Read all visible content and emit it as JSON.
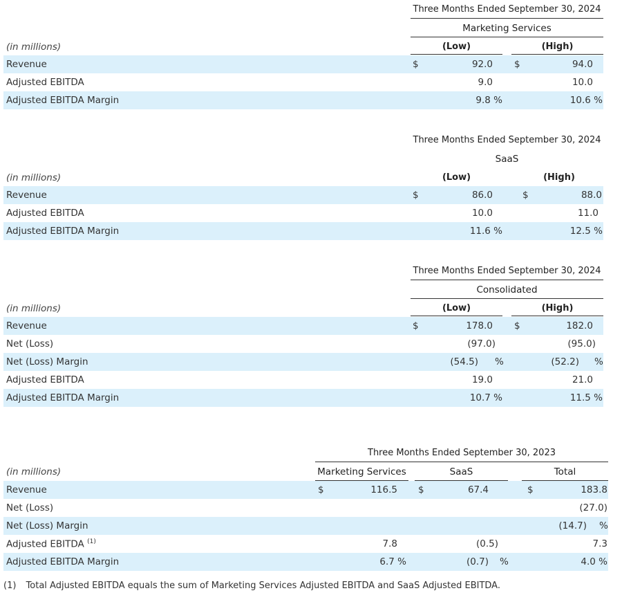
{
  "common": {
    "units_label": "(in millions)",
    "period_2024": "Three Months Ended September 30, 2024",
    "period_2023": "Three Months Ended September 30, 2023",
    "low": "(Low)",
    "high": "(High)",
    "dollar": "$",
    "pct": "%"
  },
  "table1": {
    "segment": "Marketing Services",
    "rows": [
      {
        "label": "Revenue",
        "low": "92.0",
        "high": "94.0"
      },
      {
        "label": "Adjusted EBITDA",
        "low": "9.0",
        "high": "10.0"
      },
      {
        "label": "Adjusted EBITDA Margin",
        "low": "9.8 %",
        "high": "10.6 %"
      }
    ]
  },
  "table2": {
    "segment": "SaaS",
    "rows": [
      {
        "label": "Revenue",
        "low": "86.0",
        "high": "88.0"
      },
      {
        "label": "Adjusted EBITDA",
        "low": "10.0",
        "high": "11.0"
      },
      {
        "label": "Adjusted EBITDA Margin",
        "low": "11.6 %",
        "high": "12.5 %"
      }
    ]
  },
  "table3": {
    "segment": "Consolidated",
    "rows": [
      {
        "label": "Revenue",
        "low": "178.0",
        "high": "182.0"
      },
      {
        "label": "Net (Loss)",
        "low": "(97.0)",
        "high": "(95.0)"
      },
      {
        "label": "Net (Loss) Margin",
        "low": "(54.5)",
        "high": "(52.2)"
      },
      {
        "label": "Adjusted EBITDA",
        "low": "19.0",
        "high": "21.0"
      },
      {
        "label": "Adjusted EBITDA Margin",
        "low": "10.7 %",
        "high": "11.5 %"
      }
    ]
  },
  "table4": {
    "columns": [
      "Marketing Services",
      "SaaS",
      "Total"
    ],
    "rows": [
      {
        "label": "Revenue",
        "ms": "116.5",
        "saas": "67.4",
        "total": "183.8"
      },
      {
        "label": "Net (Loss)",
        "ms": "",
        "saas": "",
        "total": "(27.0)"
      },
      {
        "label": "Net (Loss) Margin",
        "ms": "",
        "saas": "",
        "total": "(14.7)"
      },
      {
        "label": "Adjusted EBITDA",
        "footnote_ref": "(1)",
        "ms": "7.8",
        "saas": "(0.5)",
        "total": "7.3"
      },
      {
        "label": "Adjusted EBITDA Margin",
        "ms": "6.7 %",
        "saas": "(0.7)",
        "total": "4.0 %"
      }
    ]
  },
  "footnote": {
    "marker": "(1)",
    "text": "Total Adjusted EBITDA equals the sum of Marketing Services Adjusted EBITDA and SaaS Adjusted EBITDA."
  },
  "colors": {
    "row_shade": "#dbf0fb",
    "text": "#333333"
  }
}
